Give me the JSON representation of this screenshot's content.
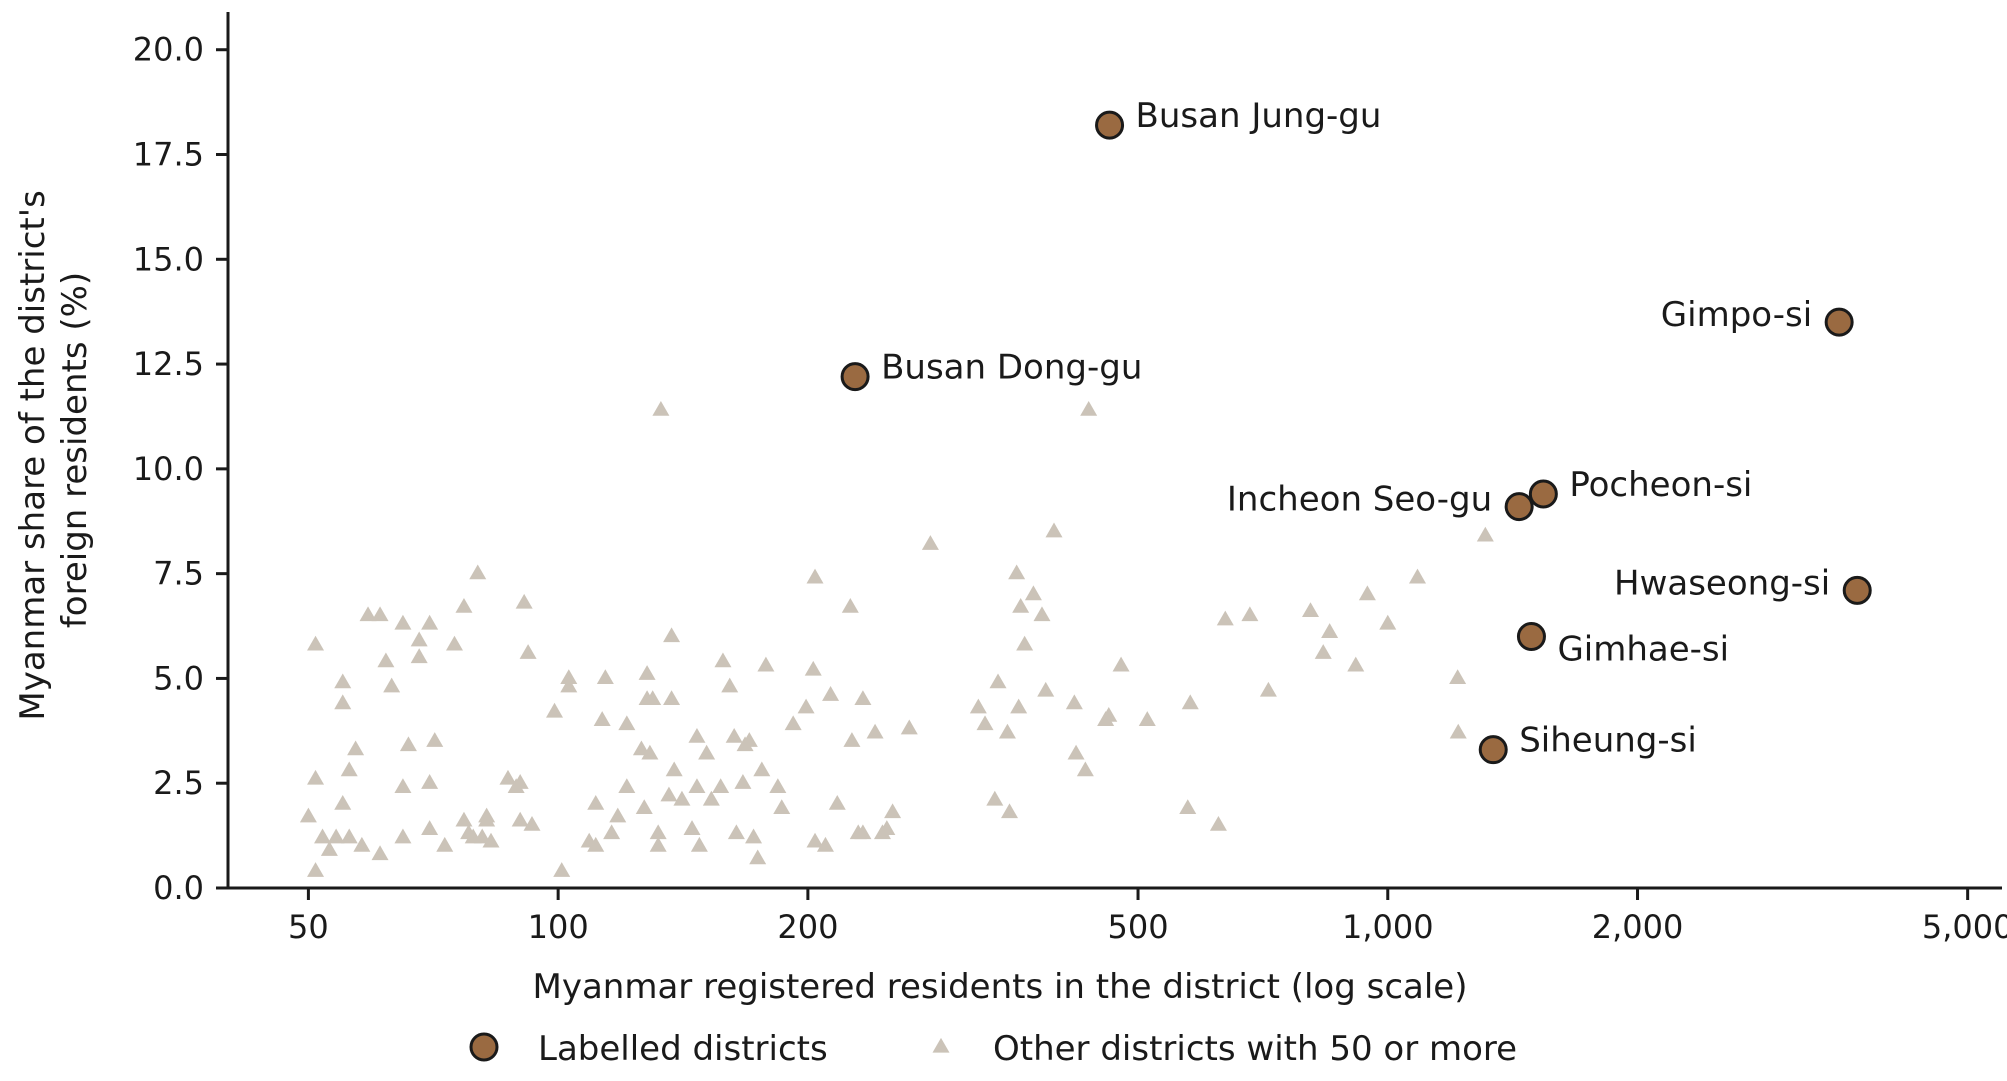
{
  "chart_data": {
    "type": "scatter",
    "title": "",
    "xlabel": "Myanmar registered residents in the district (log scale)",
    "ylabel_lines": [
      "Myanmar share of the district's",
      "foreign residents (%)"
    ],
    "x_scale": "log",
    "xlim": [
      40,
      5500
    ],
    "ylim": [
      0,
      20.9
    ],
    "x_ticks": [
      50,
      100,
      200,
      500,
      1000,
      2000,
      5000
    ],
    "x_tick_labels": [
      "50",
      "100",
      "200",
      "500",
      "1,000",
      "2,000",
      "5,000"
    ],
    "y_ticks": [
      0,
      2.5,
      5,
      7.5,
      10,
      12.5,
      15,
      17.5,
      20
    ],
    "y_tick_labels": [
      "0.0",
      "2.5",
      "5.0",
      "7.5",
      "10.0",
      "12.5",
      "15.0",
      "17.5",
      "20.0"
    ],
    "grid": false,
    "legend_position": "bottom-center",
    "colors": {
      "labelled": "#9a6a41",
      "labelled_edge": "#1a1a1a",
      "other": "#cbc3b8",
      "axis": "#1a1a1a"
    },
    "series": [
      {
        "name": "Labelled districts",
        "marker": "circle",
        "points": [
          {
            "label": "Busan Jung-gu",
            "x": 462,
            "y": 18.2,
            "label_side": "right"
          },
          {
            "label": "Busan Dong-gu",
            "x": 228,
            "y": 12.2,
            "label_side": "right"
          },
          {
            "label": "Gimpo-si",
            "x": 3500,
            "y": 13.5,
            "label_side": "left"
          },
          {
            "label": "Incheon Seo-gu",
            "x": 1440,
            "y": 9.1,
            "label_side": "left"
          },
          {
            "label": "Pocheon-si",
            "x": 1540,
            "y": 9.4,
            "label_side": "right"
          },
          {
            "label": "Hwaseong-si",
            "x": 3680,
            "y": 7.1,
            "label_side": "left"
          },
          {
            "label": "Gimhae-si",
            "x": 1490,
            "y": 6.0,
            "label_side": "right-below"
          },
          {
            "label": "Siheung-si",
            "x": 1340,
            "y": 3.3,
            "label_side": "right"
          }
        ]
      },
      {
        "name": "Other districts with 50 or more",
        "marker": "triangle",
        "points": [
          [
            50,
            1.7
          ],
          [
            51,
            5.8
          ],
          [
            51,
            2.6
          ],
          [
            51,
            0.4
          ],
          [
            52,
            1.2
          ],
          [
            53,
            0.9
          ],
          [
            54,
            1.2
          ],
          [
            55,
            4.9
          ],
          [
            55,
            4.4
          ],
          [
            55,
            2.0
          ],
          [
            56,
            1.2
          ],
          [
            56,
            2.8
          ],
          [
            57,
            3.3
          ],
          [
            58,
            1.0
          ],
          [
            59,
            6.5
          ],
          [
            61,
            6.5
          ],
          [
            61,
            0.8
          ],
          [
            62,
            5.4
          ],
          [
            63,
            4.8
          ],
          [
            65,
            6.3
          ],
          [
            65,
            2.4
          ],
          [
            65,
            1.2
          ],
          [
            66,
            3.4
          ],
          [
            68,
            5.9
          ],
          [
            68,
            5.5
          ],
          [
            70,
            6.3
          ],
          [
            71,
            3.5
          ],
          [
            70,
            2.5
          ],
          [
            70,
            1.4
          ],
          [
            73,
            1.0
          ],
          [
            75,
            5.8
          ],
          [
            77,
            1.6
          ],
          [
            77,
            6.7
          ],
          [
            78,
            1.3
          ],
          [
            79,
            1.2
          ],
          [
            80,
            7.5
          ],
          [
            81,
            1.2
          ],
          [
            82,
            1.6
          ],
          [
            82,
            1.7
          ],
          [
            83,
            1.1
          ],
          [
            87,
            2.6
          ],
          [
            89,
            2.4
          ],
          [
            90,
            2.5
          ],
          [
            90,
            1.6
          ],
          [
            91,
            6.8
          ],
          [
            92,
            5.6
          ],
          [
            93,
            1.5
          ],
          [
            99,
            4.2
          ],
          [
            101,
            0.4
          ],
          [
            103,
            4.8
          ],
          [
            103,
            5.0
          ],
          [
            109,
            1.1
          ],
          [
            111,
            1.0
          ],
          [
            111,
            2.0
          ],
          [
            113,
            4.0
          ],
          [
            114,
            5.0
          ],
          [
            116,
            1.3
          ],
          [
            118,
            1.7
          ],
          [
            121,
            2.4
          ],
          [
            121,
            3.9
          ],
          [
            126,
            3.3
          ],
          [
            127,
            1.9
          ],
          [
            128,
            4.5
          ],
          [
            128,
            5.1
          ],
          [
            129,
            3.2
          ],
          [
            130,
            4.5
          ],
          [
            132,
            1.3
          ],
          [
            132,
            1.0
          ],
          [
            133,
            11.4
          ],
          [
            136,
            2.2
          ],
          [
            137,
            4.5
          ],
          [
            138,
            2.8
          ],
          [
            137,
            6.0
          ],
          [
            141,
            2.1
          ],
          [
            145,
            1.4
          ],
          [
            147,
            2.4
          ],
          [
            147,
            3.6
          ],
          [
            148,
            1.0
          ],
          [
            151,
            3.2
          ],
          [
            153,
            2.1
          ],
          [
            157,
            2.4
          ],
          [
            158,
            5.4
          ],
          [
            161,
            4.8
          ],
          [
            163,
            3.6
          ],
          [
            164,
            1.3
          ],
          [
            167,
            2.5
          ],
          [
            168,
            3.4
          ],
          [
            170,
            3.5
          ],
          [
            172,
            1.2
          ],
          [
            174,
            0.7
          ],
          [
            176,
            2.8
          ],
          [
            178,
            5.3
          ],
          [
            184,
            2.4
          ],
          [
            186,
            1.9
          ],
          [
            192,
            3.9
          ],
          [
            199,
            4.3
          ],
          [
            203,
            5.2
          ],
          [
            204,
            7.4
          ],
          [
            204,
            1.1
          ],
          [
            210,
            1.0
          ],
          [
            213,
            4.6
          ],
          [
            217,
            2.0
          ],
          [
            225,
            6.7
          ],
          [
            226,
            3.5
          ],
          [
            230,
            1.3
          ],
          [
            233,
            4.5
          ],
          [
            233,
            1.3
          ],
          [
            241,
            3.7
          ],
          [
            246,
            1.3
          ],
          [
            249,
            1.4
          ],
          [
            253,
            1.8
          ],
          [
            265,
            3.8
          ],
          [
            281,
            8.2
          ],
          [
            321,
            4.3
          ],
          [
            327,
            3.9
          ],
          [
            336,
            2.1
          ],
          [
            339,
            4.9
          ],
          [
            348,
            3.7
          ],
          [
            350,
            1.8
          ],
          [
            357,
            7.5
          ],
          [
            359,
            4.3
          ],
          [
            361,
            6.7
          ],
          [
            365,
            5.8
          ],
          [
            374,
            7.0
          ],
          [
            383,
            6.5
          ],
          [
            387,
            4.7
          ],
          [
            396,
            8.5
          ],
          [
            419,
            4.4
          ],
          [
            421,
            3.2
          ],
          [
            432,
            2.8
          ],
          [
            436,
            11.4
          ],
          [
            457,
            4.0
          ],
          [
            461,
            4.1
          ],
          [
            477,
            5.3
          ],
          [
            513,
            4.0
          ],
          [
            574,
            1.9
          ],
          [
            578,
            4.4
          ],
          [
            625,
            1.5
          ],
          [
            637,
            6.4
          ],
          [
            682,
            6.5
          ],
          [
            718,
            4.7
          ],
          [
            807,
            6.6
          ],
          [
            836,
            5.6
          ],
          [
            851,
            6.1
          ],
          [
            915,
            5.3
          ],
          [
            945,
            7.0
          ],
          [
            1000,
            6.3
          ],
          [
            1086,
            7.4
          ],
          [
            1214,
            5.0
          ],
          [
            1216,
            3.7
          ],
          [
            1311,
            8.4
          ]
        ]
      }
    ]
  }
}
